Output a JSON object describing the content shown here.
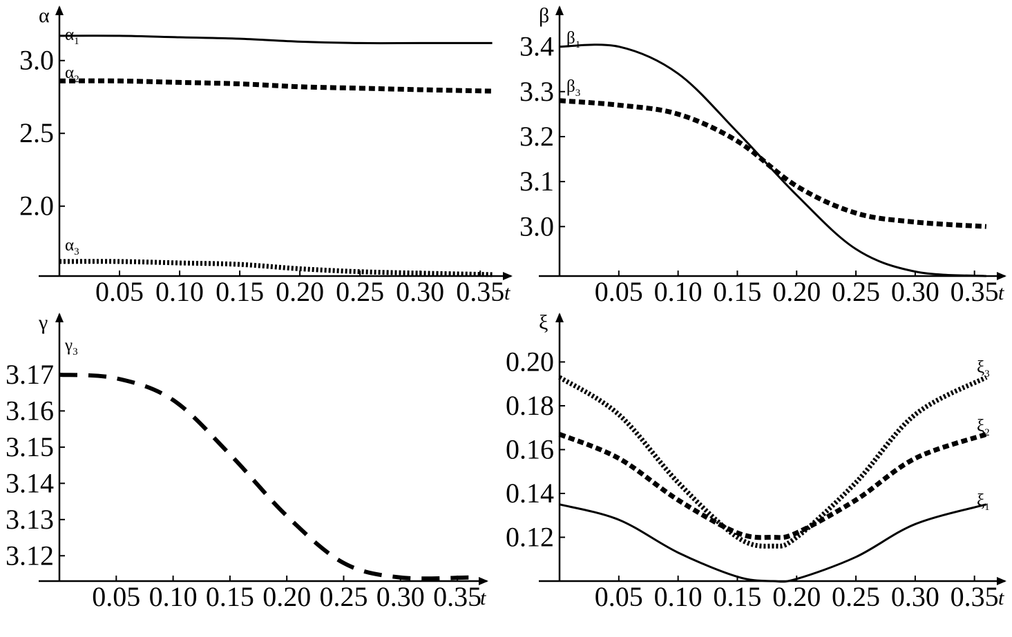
{
  "chart_data": [
    {
      "id": "alpha",
      "type": "line",
      "ylabel": "α",
      "xlabel": "t",
      "xlim": [
        0,
        0.37
      ],
      "ylim": [
        1.52,
        3.25
      ],
      "xticks": [
        0.05,
        0.1,
        0.15,
        0.2,
        0.25,
        0.3,
        0.35
      ],
      "xtick_labels": [
        "0.05",
        "0.10",
        "0.15",
        "0.20",
        "0.25",
        "0.30",
        "0.35"
      ],
      "yticks": [
        2.0,
        2.5,
        3.0
      ],
      "ytick_labels": [
        "2.0",
        "2.5",
        "3.0"
      ],
      "series": [
        {
          "key": "a1",
          "label": "α",
          "sub": "1",
          "style": "solid",
          "x": [
            0,
            0.05,
            0.1,
            0.15,
            0.2,
            0.25,
            0.3,
            0.36
          ],
          "y": [
            3.17,
            3.17,
            3.16,
            3.15,
            3.13,
            3.12,
            3.12,
            3.12
          ]
        },
        {
          "key": "a2",
          "label": "α",
          "sub": "2",
          "style": "dashed",
          "x": [
            0,
            0.05,
            0.1,
            0.15,
            0.2,
            0.25,
            0.3,
            0.36
          ],
          "y": [
            2.86,
            2.86,
            2.85,
            2.84,
            2.82,
            2.81,
            2.8,
            2.79
          ]
        },
        {
          "key": "a3",
          "label": "α",
          "sub": "3",
          "style": "dotted",
          "x": [
            0,
            0.05,
            0.1,
            0.15,
            0.2,
            0.25,
            0.3,
            0.36
          ],
          "y": [
            1.62,
            1.62,
            1.61,
            1.6,
            1.57,
            1.55,
            1.54,
            1.53
          ]
        }
      ]
    },
    {
      "id": "beta",
      "type": "line",
      "ylabel": "β",
      "xlabel": "t",
      "xlim": [
        0,
        0.37
      ],
      "ylim": [
        2.89,
        3.45
      ],
      "xticks": [
        0.05,
        0.1,
        0.15,
        0.2,
        0.25,
        0.3,
        0.35
      ],
      "xtick_labels": [
        "0.05",
        "0.10",
        "0.15",
        "0.20",
        "0.25",
        "0.30",
        "0.35"
      ],
      "yticks": [
        3.0,
        3.1,
        3.2,
        3.3,
        3.4
      ],
      "ytick_labels": [
        "3.0",
        "3.1",
        "3.2",
        "3.3",
        "3.4"
      ],
      "series": [
        {
          "key": "b1",
          "label": "β",
          "sub": "1",
          "style": "solid",
          "x": [
            0,
            0.05,
            0.1,
            0.15,
            0.2,
            0.25,
            0.3,
            0.36
          ],
          "y": [
            3.4,
            3.4,
            3.34,
            3.21,
            3.07,
            2.95,
            2.9,
            2.89
          ]
        },
        {
          "key": "b3",
          "label": "β",
          "sub": "3",
          "style": "dashed",
          "x": [
            0,
            0.05,
            0.1,
            0.15,
            0.2,
            0.25,
            0.3,
            0.36
          ],
          "y": [
            3.28,
            3.27,
            3.25,
            3.19,
            3.09,
            3.03,
            3.01,
            3.0
          ]
        }
      ]
    },
    {
      "id": "gamma",
      "type": "line",
      "ylabel": "γ",
      "xlabel": "t",
      "xlim": [
        0,
        0.37
      ],
      "ylim": [
        3.113,
        3.182
      ],
      "xticks": [
        0.05,
        0.1,
        0.15,
        0.2,
        0.25,
        0.3,
        0.35
      ],
      "xtick_labels": [
        "0.05",
        "0.10",
        "0.15",
        "0.20",
        "0.25",
        "0.30",
        "0.35"
      ],
      "yticks": [
        3.12,
        3.13,
        3.14,
        3.15,
        3.16,
        3.17
      ],
      "ytick_labels": [
        "3.12",
        "3.13",
        "3.14",
        "3.15",
        "3.16",
        "3.17"
      ],
      "series": [
        {
          "key": "g3",
          "label": "γ",
          "sub": "3",
          "style": "longdash",
          "x": [
            0,
            0.05,
            0.1,
            0.15,
            0.2,
            0.25,
            0.3,
            0.36
          ],
          "y": [
            3.17,
            3.169,
            3.163,
            3.148,
            3.131,
            3.118,
            3.114,
            3.114
          ]
        }
      ]
    },
    {
      "id": "xi",
      "type": "line",
      "ylabel": "ξ",
      "xlabel": "t",
      "xlim": [
        0,
        0.37
      ],
      "ylim": [
        0.1,
        0.214
      ],
      "xticks": [
        0.05,
        0.1,
        0.15,
        0.2,
        0.25,
        0.3,
        0.35
      ],
      "xtick_labels": [
        "0.05",
        "0.10",
        "0.15",
        "0.20",
        "0.25",
        "0.30",
        "0.35"
      ],
      "yticks": [
        0.12,
        0.14,
        0.16,
        0.18,
        0.2
      ],
      "ytick_labels": [
        "0.12",
        "0.14",
        "0.16",
        "0.18",
        "0.20"
      ],
      "series": [
        {
          "key": "x1",
          "label": "ξ",
          "sub": "1",
          "style": "solid",
          "x": [
            0,
            0.05,
            0.1,
            0.15,
            0.18,
            0.2,
            0.25,
            0.3,
            0.36
          ],
          "y": [
            0.135,
            0.128,
            0.113,
            0.102,
            0.1,
            0.101,
            0.111,
            0.126,
            0.135
          ]
        },
        {
          "key": "x2",
          "label": "ξ",
          "sub": "2",
          "style": "dashed",
          "x": [
            0,
            0.05,
            0.1,
            0.15,
            0.18,
            0.2,
            0.25,
            0.3,
            0.36
          ],
          "y": [
            0.167,
            0.156,
            0.137,
            0.122,
            0.12,
            0.122,
            0.137,
            0.156,
            0.167
          ]
        },
        {
          "key": "x3",
          "label": "ξ",
          "sub": "3",
          "style": "dotted",
          "x": [
            0,
            0.05,
            0.1,
            0.15,
            0.18,
            0.2,
            0.25,
            0.3,
            0.36
          ],
          "y": [
            0.193,
            0.176,
            0.145,
            0.12,
            0.116,
            0.12,
            0.145,
            0.176,
            0.193
          ]
        }
      ]
    }
  ]
}
